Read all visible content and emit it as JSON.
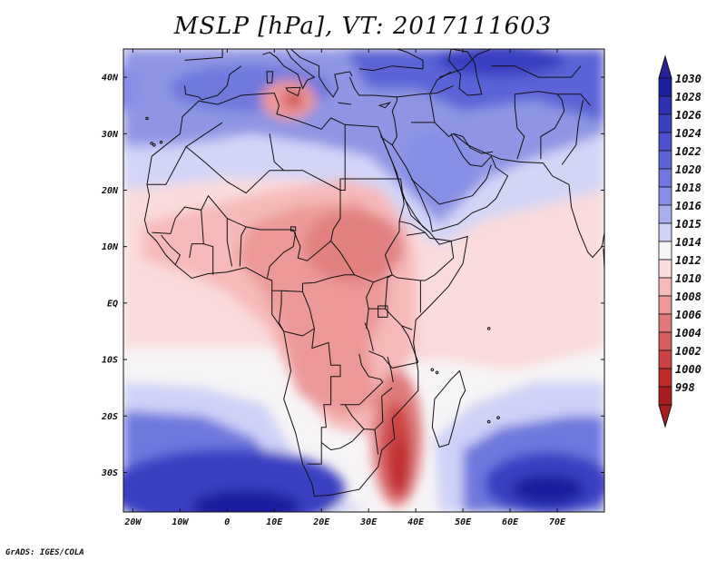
{
  "title": "MSLP [hPa], VT: 2017111603",
  "credit": "GrADS: IGES/COLA",
  "map": {
    "lon_range": [
      -22,
      80
    ],
    "lat_range": [
      -37,
      45
    ],
    "lon_ticks": [
      {
        "value": -20,
        "label": "20W"
      },
      {
        "value": -10,
        "label": "10W"
      },
      {
        "value": 0,
        "label": "0"
      },
      {
        "value": 10,
        "label": "10E"
      },
      {
        "value": 20,
        "label": "20E"
      },
      {
        "value": 30,
        "label": "30E"
      },
      {
        "value": 40,
        "label": "40E"
      },
      {
        "value": 50,
        "label": "50E"
      },
      {
        "value": 60,
        "label": "60E"
      },
      {
        "value": 70,
        "label": "70E"
      }
    ],
    "lat_ticks": [
      {
        "value": 40,
        "label": "40N"
      },
      {
        "value": 30,
        "label": "30N"
      },
      {
        "value": 20,
        "label": "20N"
      },
      {
        "value": 10,
        "label": "10N"
      },
      {
        "value": 0,
        "label": "EQ"
      },
      {
        "value": -10,
        "label": "10S"
      },
      {
        "value": -20,
        "label": "20S"
      },
      {
        "value": -30,
        "label": "30S"
      }
    ]
  },
  "colorbar": {
    "levels": [
      "1030",
      "1028",
      "1026",
      "1024",
      "1022",
      "1020",
      "1018",
      "1016",
      "1015",
      "1014",
      "1012",
      "1010",
      "1008",
      "1006",
      "1004",
      "1002",
      "1000",
      "998"
    ],
    "colors": [
      "#1a1f9e",
      "#2b31b0",
      "#3a41c1",
      "#4b52cc",
      "#5c64d6",
      "#7078de",
      "#868ee6",
      "#a9aeef",
      "#cfd2f7",
      "#f7f4f6",
      "#fadcdc",
      "#f5b9b9",
      "#ec9898",
      "#e07a7a",
      "#d65d5d",
      "#cb4242",
      "#be2a2a",
      "#a81e1e"
    ],
    "top_color": "#2a1f9a",
    "bottom_color": "#a81e1e"
  },
  "chart_data": {
    "type": "heatmap",
    "title": "MSLP [hPa], VT: 2017111603",
    "variable": "Mean sea level pressure",
    "units": "hPa",
    "valid_time": "2017111603",
    "xlim": [
      -22,
      80
    ],
    "ylim": [
      -37,
      45
    ],
    "levels": [
      998,
      1000,
      1002,
      1004,
      1006,
      1008,
      1010,
      1012,
      1014,
      1015,
      1016,
      1018,
      1020,
      1022,
      1024,
      1026,
      1028,
      1030
    ],
    "features": [
      {
        "name": "low over Mozambique Channel / SE Africa",
        "lon": 36,
        "lat": -25,
        "approx_hPa": 1000
      },
      {
        "name": "low over southern Mediterranean",
        "lon": 14,
        "lat": 36,
        "approx_hPa": 1008
      },
      {
        "name": "high over South Atlantic",
        "lon": 5,
        "lat": -33,
        "approx_hPa": 1028
      },
      {
        "name": "high over southern Indian Ocean",
        "lon": 68,
        "lat": -33,
        "approx_hPa": 1028
      },
      {
        "name": "high over Eurasia / Middle East",
        "lon": 55,
        "lat": 42,
        "approx_hPa": 1026
      },
      {
        "name": "trough over central Africa",
        "lon": 25,
        "lat": 5,
        "approx_hPa": 1008
      }
    ]
  }
}
